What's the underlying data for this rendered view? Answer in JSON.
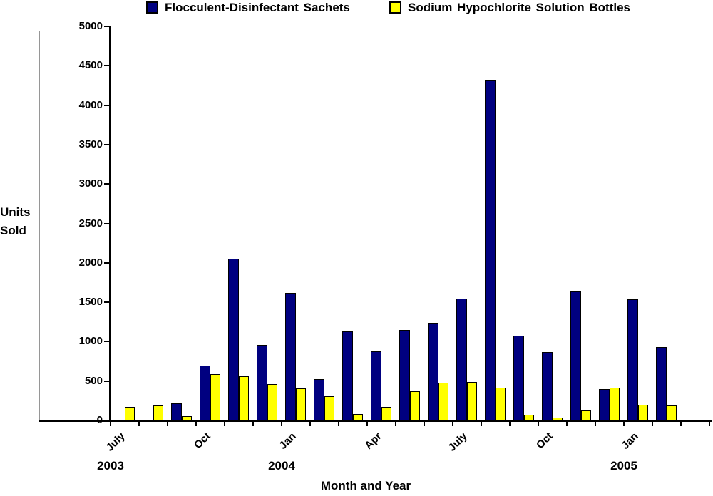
{
  "chart_data": {
    "type": "bar",
    "title": "",
    "xlabel": "Month and Year",
    "ylabel": "Units\nSold",
    "ylim": [
      0,
      5000
    ],
    "ytick_step": 500,
    "grid": false,
    "legend_position": "top",
    "categories": [
      "Jul 2003",
      "Aug 2003",
      "Sep 2003",
      "Oct 2003",
      "Nov 2003",
      "Dec 2003",
      "Jan 2004",
      "Feb 2004",
      "Mar 2004",
      "Apr 2004",
      "May 2004",
      "Jun 2004",
      "Jul 2004",
      "Aug 2004",
      "Sep 2004",
      "Oct 2004",
      "Nov 2004",
      "Dec 2004",
      "Jan 2005",
      "Feb 2005"
    ],
    "visible_x_ticks": [
      {
        "index": 0,
        "label": "July"
      },
      {
        "index": 3,
        "label": "Oct"
      },
      {
        "index": 6,
        "label": "Jan"
      },
      {
        "index": 9,
        "label": "Apr"
      },
      {
        "index": 12,
        "label": "July"
      },
      {
        "index": 15,
        "label": "Oct"
      },
      {
        "index": 18,
        "label": "Jan"
      }
    ],
    "year_labels": [
      {
        "index": 0,
        "label": "2003"
      },
      {
        "index": 6,
        "label": "2004"
      },
      {
        "index": 18,
        "label": "2005"
      }
    ],
    "extra_empty_slots": 1,
    "series": [
      {
        "name": "Flocculent-Disinfectant Sachets",
        "color": "#000080",
        "values": [
          0,
          0,
          220,
          700,
          2050,
          960,
          1620,
          520,
          1130,
          880,
          1150,
          1240,
          1550,
          4320,
          1080,
          870,
          1640,
          400,
          1540,
          930
        ]
      },
      {
        "name": "Sodium Hypochlorite Solution Bottles",
        "color": "#FFFF00",
        "values": [
          175,
          190,
          50,
          590,
          560,
          460,
          410,
          310,
          80,
          170,
          370,
          480,
          490,
          415,
          70,
          40,
          125,
          420,
          200,
          190
        ]
      }
    ]
  }
}
